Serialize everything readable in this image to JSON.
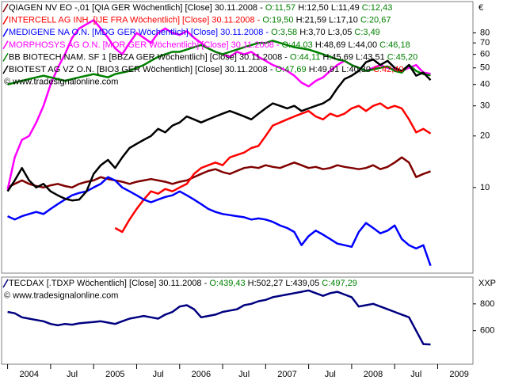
{
  "chart_data": [
    {
      "type": "line",
      "log_scale": true,
      "unit": "€",
      "watermark": "© www.tradesignalonline.com",
      "xlim": [
        2003.93,
        2009.41
      ],
      "x": [
        2004.0,
        2004.083,
        2004.167,
        2004.25,
        2004.333,
        2004.417,
        2004.5,
        2004.583,
        2004.667,
        2004.75,
        2004.833,
        2004.917,
        2005.0,
        2005.083,
        2005.167,
        2005.25,
        2005.333,
        2005.417,
        2005.5,
        2005.583,
        2005.667,
        2005.75,
        2005.833,
        2005.917,
        2006.0,
        2006.083,
        2006.167,
        2006.25,
        2006.333,
        2006.417,
        2006.5,
        2006.583,
        2006.667,
        2006.75,
        2006.833,
        2006.917,
        2007.0,
        2007.083,
        2007.167,
        2007.25,
        2007.333,
        2007.417,
        2007.5,
        2007.583,
        2007.667,
        2007.75,
        2007.833,
        2007.917,
        2008.0,
        2008.083,
        2008.167,
        2008.25,
        2008.333,
        2008.417,
        2008.5,
        2008.583,
        2008.667,
        2008.75,
        2008.833,
        2008.917
      ],
      "ylim": [
        3.16,
        122
      ],
      "yticks": [
        10,
        20,
        30,
        40,
        50,
        60,
        70,
        80
      ],
      "series": [
        {
          "name": "QIAGEN NV",
          "color": "#800000",
          "label_color": "#000000",
          "info": "EO -,01 [QIA GER  Wöchentlich] [Close] 30.11.2008 -",
          "open": "O:11,57",
          "high": "H:12,50",
          "low": "L:11,49",
          "close": "C:12,43",
          "close_color": "#008000",
          "values": [
            10,
            10.5,
            11,
            10.5,
            10.2,
            10,
            10.3,
            10.5,
            10.2,
            10,
            10.5,
            10.8,
            11,
            11.5,
            11.2,
            11,
            10.8,
            10.5,
            10.8,
            11,
            11.2,
            11,
            10.8,
            10.5,
            10.8,
            11,
            11.5,
            12,
            12.5,
            12.8,
            12.3,
            12,
            12.5,
            13,
            13.2,
            13,
            13.5,
            13.2,
            13,
            13.5,
            14,
            13.5,
            13,
            13.2,
            12.8,
            13,
            13.5,
            13.2,
            13,
            12.8,
            13,
            13.5,
            12.8,
            13.2,
            14,
            15,
            14,
            11.5,
            12,
            12.43
          ]
        },
        {
          "name": "INTERCELL AG INH.",
          "color": "#ff0000",
          "label_color": "#ff0000",
          "info": "[IJE FRA  Wöchentlich] [Close] 30.11.2008 -",
          "open": "O:19,50",
          "high": "H:21,59",
          "low": "L:17,10",
          "close": "C:20,67",
          "close_color": "#008000",
          "values": [
            null,
            null,
            null,
            null,
            null,
            null,
            null,
            null,
            null,
            null,
            null,
            null,
            null,
            null,
            null,
            5.8,
            5.5,
            6.5,
            7.5,
            8.5,
            9.5,
            9.2,
            9.8,
            9.5,
            10,
            10.5,
            12,
            13,
            13.5,
            14,
            13.5,
            15,
            15.5,
            16,
            17,
            17.5,
            20,
            23,
            24,
            25,
            26,
            27,
            28,
            26,
            25,
            27,
            26,
            27,
            29,
            30,
            28,
            30,
            31,
            29,
            30,
            29,
            25,
            21,
            22,
            20.67
          ]
        },
        {
          "name": "MEDIGENE NA O.N.",
          "color": "#0000ff",
          "label_color": "#0000ff",
          "info": "[MDG GER  Wöchentlich] [Close] 30.11.2008 -",
          "open": "O:3,58",
          "high": "H:3,70",
          "low": "L:3,05",
          "close": "C:3,49",
          "close_color": "#008000",
          "values": [
            6.8,
            6.5,
            6.8,
            7,
            7.2,
            7,
            7.5,
            8,
            8.5,
            9,
            9.3,
            9.5,
            10,
            10.5,
            11.5,
            11,
            10,
            9.5,
            9,
            8.5,
            8.2,
            8.5,
            8.8,
            9,
            9.5,
            9,
            8.5,
            8,
            7.5,
            7.2,
            7,
            6.9,
            6.8,
            6.7,
            6.5,
            6.6,
            6.5,
            6.3,
            6,
            5.8,
            5.5,
            4.6,
            5.2,
            5.6,
            5.3,
            5,
            4.7,
            4.6,
            4.5,
            5.5,
            6.2,
            5.8,
            5.4,
            5.6,
            6,
            5,
            4.6,
            4.4,
            4.6,
            3.49
          ]
        },
        {
          "name": "MORPHOSYS AG O.N.",
          "color": "#ff00ff",
          "label_color": "#ff00ff",
          "info": "[MOR GER  Wöchentlich] [Close] 30.11.2008 -",
          "open": "O:44,03",
          "high": "H:48,69",
          "low": "L:44,00",
          "close": "C:46,18",
          "close_color": "#008000",
          "values": [
            9.7,
            15,
            19,
            20,
            24,
            30,
            40,
            50,
            60,
            75,
            85,
            90,
            95,
            85,
            75,
            65,
            60,
            70,
            80,
            75,
            70,
            80,
            85,
            80,
            78,
            82,
            75,
            70,
            65,
            62,
            60,
            58,
            62,
            60,
            62,
            58,
            55,
            52,
            50,
            48,
            45,
            41,
            39,
            42,
            44,
            48,
            52,
            55,
            52,
            50,
            48,
            50,
            52,
            50,
            49,
            48,
            50,
            52,
            47,
            46.18
          ]
        },
        {
          "name": "BB BIOTECH NAM.",
          "color": "#008000",
          "label_color": "#000000",
          "info": "SF 1 [BBZA GER  Wöchentlich] [Close] 30.11.2008 -",
          "open": "O:44,11",
          "high": "H:45,69",
          "low": "L:43,51",
          "close": "C:45,20",
          "close_color": "#008000",
          "values": [
            40,
            41,
            42,
            43,
            44,
            45,
            44,
            43,
            42,
            43,
            44,
            45,
            46,
            45,
            44,
            46,
            47,
            48,
            50,
            52,
            55,
            58,
            60,
            62,
            62,
            64,
            66,
            68,
            65,
            62,
            60,
            62,
            64,
            66,
            68,
            70,
            70,
            72,
            70,
            68,
            66,
            65,
            64,
            62,
            60,
            58,
            56,
            55,
            52,
            50,
            48,
            49,
            50,
            51,
            48,
            47,
            52,
            48,
            46,
            45.2
          ]
        },
        {
          "name": "BIOTEST AG VZ O.N.",
          "color": "#000000",
          "label_color": "#000000",
          "info": "[BIO3 GER  Wöchentlich] [Close] 30.11.2008 -",
          "open": "O:47,69",
          "high": "H:49,91",
          "low": "L:40,30",
          "close": "C:42,40",
          "close_color": "#ff0000",
          "values": [
            9.5,
            11,
            13,
            11,
            10,
            10.5,
            9.5,
            9,
            8.6,
            8.4,
            8.5,
            9.5,
            12,
            13.5,
            14.5,
            13,
            15,
            17,
            18,
            19,
            20,
            22,
            21,
            23,
            24,
            26,
            25,
            24,
            25,
            26,
            27,
            28,
            27,
            26,
            25,
            27,
            29,
            31,
            30,
            29,
            30,
            28,
            29,
            30,
            31,
            33,
            38,
            43,
            45,
            48,
            54,
            56,
            52,
            55,
            50,
            48,
            52,
            45,
            47,
            42.4
          ]
        }
      ]
    },
    {
      "type": "line",
      "log_scale": false,
      "unit": "XXP",
      "watermark": "© www.tradesignalonline.com",
      "xlim": [
        2003.93,
        2009.41
      ],
      "x": [
        2004.0,
        2004.083,
        2004.167,
        2004.25,
        2004.333,
        2004.417,
        2004.5,
        2004.583,
        2004.667,
        2004.75,
        2004.833,
        2004.917,
        2005.0,
        2005.083,
        2005.167,
        2005.25,
        2005.333,
        2005.417,
        2005.5,
        2005.583,
        2005.667,
        2005.75,
        2005.833,
        2005.917,
        2006.0,
        2006.083,
        2006.167,
        2006.25,
        2006.333,
        2006.417,
        2006.5,
        2006.583,
        2006.667,
        2006.75,
        2006.833,
        2006.917,
        2007.0,
        2007.083,
        2007.167,
        2007.25,
        2007.333,
        2007.417,
        2007.5,
        2007.583,
        2007.667,
        2007.75,
        2007.833,
        2007.917,
        2008.0,
        2008.083,
        2008.167,
        2008.25,
        2008.333,
        2008.417,
        2008.5,
        2008.583,
        2008.667,
        2008.75,
        2008.833,
        2008.917
      ],
      "xticks": [
        {
          "value": 2004,
          "label": "2004"
        },
        {
          "value": 2004.5,
          "label": "Jul"
        },
        {
          "value": 2005,
          "label": "2005"
        },
        {
          "value": 2005.5,
          "label": "Jul"
        },
        {
          "value": 2006,
          "label": "2006"
        },
        {
          "value": 2006.5,
          "label": "Jul"
        },
        {
          "value": 2007,
          "label": "2007"
        },
        {
          "value": 2007.5,
          "label": "Jul"
        },
        {
          "value": 2008,
          "label": "2008"
        },
        {
          "value": 2008.5,
          "label": "Jul"
        },
        {
          "value": 2009,
          "label": "2009"
        }
      ],
      "ylim": [
        350,
        1000
      ],
      "yticks": [
        600,
        800
      ],
      "series": [
        {
          "name": "TECDAX",
          "color": "#000080",
          "label_color": "#000000",
          "info": "[.TDXP  Wöchentlich] [Close] 30.11.2008 -",
          "open": "O:439,43",
          "high": "H:502,27",
          "low": "L:439,05",
          "close": "C:497,29",
          "close_color": "#008000",
          "values": [
            740,
            730,
            700,
            690,
            680,
            670,
            650,
            640,
            650,
            645,
            655,
            660,
            665,
            670,
            660,
            650,
            670,
            690,
            700,
            710,
            700,
            690,
            720,
            740,
            780,
            790,
            760,
            700,
            710,
            720,
            740,
            750,
            760,
            790,
            800,
            820,
            830,
            850,
            860,
            870,
            880,
            890,
            900,
            880,
            860,
            880,
            890,
            870,
            850,
            780,
            790,
            800,
            780,
            760,
            740,
            720,
            700,
            600,
            500,
            497.29
          ]
        }
      ]
    }
  ]
}
